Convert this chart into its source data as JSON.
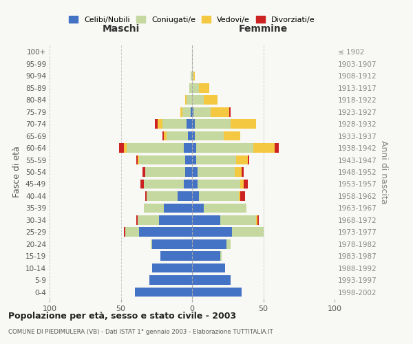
{
  "age_groups": [
    "0-4",
    "5-9",
    "10-14",
    "15-19",
    "20-24",
    "25-29",
    "30-34",
    "35-39",
    "40-44",
    "45-49",
    "50-54",
    "55-59",
    "60-64",
    "65-69",
    "70-74",
    "75-79",
    "80-84",
    "85-89",
    "90-94",
    "95-99",
    "100+"
  ],
  "birth_years": [
    "1998-2002",
    "1993-1997",
    "1988-1992",
    "1983-1987",
    "1978-1982",
    "1973-1977",
    "1968-1972",
    "1963-1967",
    "1958-1962",
    "1953-1957",
    "1948-1952",
    "1943-1947",
    "1938-1942",
    "1933-1937",
    "1928-1932",
    "1923-1927",
    "1918-1922",
    "1913-1917",
    "1908-1912",
    "1903-1907",
    "≤ 1902"
  ],
  "colors": {
    "celibe": "#4472c4",
    "coniugato": "#c5d8a0",
    "vedovo": "#f5c842",
    "divorziato": "#cc2222"
  },
  "maschi": {
    "celibe": [
      40,
      30,
      28,
      22,
      28,
      37,
      23,
      20,
      10,
      6,
      5,
      5,
      6,
      3,
      4,
      1,
      0,
      0,
      0,
      0,
      0
    ],
    "coniugato": [
      0,
      0,
      0,
      0,
      1,
      10,
      15,
      14,
      22,
      28,
      28,
      32,
      40,
      15,
      17,
      6,
      4,
      2,
      1,
      0,
      0
    ],
    "vedovo": [
      0,
      0,
      0,
      0,
      0,
      0,
      0,
      0,
      0,
      0,
      0,
      1,
      2,
      2,
      3,
      1,
      1,
      0,
      0,
      0,
      0
    ],
    "divorziato": [
      0,
      0,
      0,
      0,
      0,
      1,
      1,
      0,
      1,
      2,
      2,
      1,
      3,
      1,
      2,
      0,
      0,
      0,
      0,
      0,
      0
    ]
  },
  "femmine": {
    "nubile": [
      35,
      27,
      23,
      20,
      24,
      28,
      20,
      8,
      5,
      4,
      4,
      3,
      3,
      2,
      2,
      1,
      0,
      0,
      0,
      0,
      0
    ],
    "coniugata": [
      0,
      0,
      0,
      1,
      3,
      22,
      25,
      30,
      28,
      30,
      26,
      28,
      40,
      20,
      25,
      12,
      8,
      5,
      1,
      0,
      0
    ],
    "vedova": [
      0,
      0,
      0,
      0,
      0,
      0,
      1,
      0,
      1,
      2,
      5,
      8,
      15,
      12,
      18,
      13,
      10,
      7,
      1,
      0,
      0
    ],
    "divorziata": [
      0,
      0,
      0,
      0,
      0,
      0,
      1,
      0,
      3,
      3,
      1,
      1,
      3,
      0,
      0,
      1,
      0,
      0,
      0,
      0,
      0
    ]
  },
  "title": "Popolazione per età, sesso e stato civile - 2003",
  "subtitle": "COMUNE DI PIEDIMULERA (VB) - Dati ISTAT 1° gennaio 2003 - Elaborazione TUTTITALIA.IT",
  "ylabel": "Fasce di età",
  "ylabel_right": "Anni di nascita",
  "xlabel_maschi": "Maschi",
  "xlabel_femmine": "Femmine",
  "xlim": [
    -100,
    100
  ],
  "legend_labels": [
    "Celibi/Nubili",
    "Coniugati/e",
    "Vedovi/e",
    "Divorziati/e"
  ],
  "bg_color": "#f8f8f4",
  "bar_height": 0.78
}
